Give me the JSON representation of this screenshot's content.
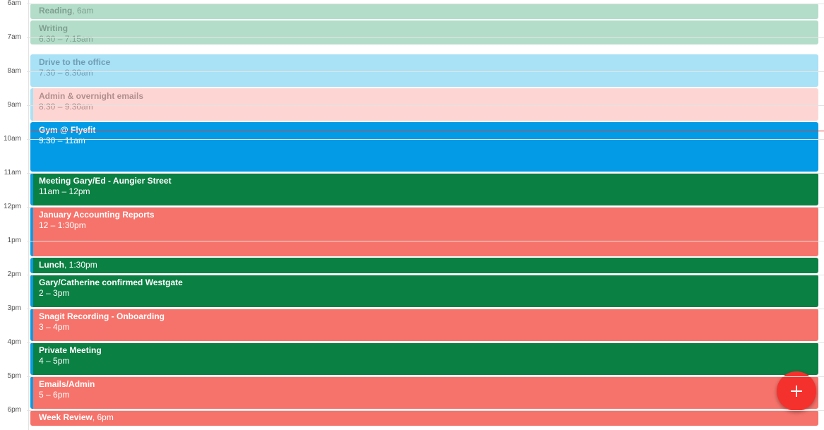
{
  "hours": [
    "6am",
    "7am",
    "8am",
    "9am",
    "10am",
    "11am",
    "12pm",
    "1pm",
    "2pm",
    "3pm",
    "4pm",
    "5pm",
    "6pm"
  ],
  "inline_separator": ", ",
  "events": [
    {
      "title": "Reading",
      "time": "6am"
    },
    {
      "title": "Writing",
      "time": "6:30 – 7:15am"
    },
    {
      "title": "Drive to the office",
      "time": "7:30 – 8:30am"
    },
    {
      "title": "Admin & overnight emails",
      "time": "8:30 – 9:30am"
    },
    {
      "title": "Gym @ Flyefit",
      "time": "9:30 – 11am"
    },
    {
      "title": "Meeting Gary/Ed - Aungier Street",
      "time": "11am – 12pm"
    },
    {
      "title": "January Accounting Reports",
      "time": "12 – 1:30pm"
    },
    {
      "title": "Lunch",
      "time": "1:30pm"
    },
    {
      "title": "Gary/Catherine confirmed Westgate",
      "time": "2 – 3pm"
    },
    {
      "title": "Snagit Recording - Onboarding",
      "time": "3 – 4pm"
    },
    {
      "title": "Private Meeting",
      "time": "4 – 5pm"
    },
    {
      "title": "Emails/Admin",
      "time": "5 – 6pm"
    },
    {
      "title": "Week Review",
      "time": "6pm"
    }
  ]
}
